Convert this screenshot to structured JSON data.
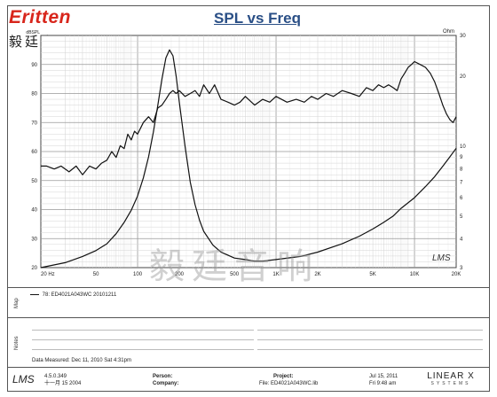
{
  "branding": {
    "brand": "Eritten",
    "brand_cn": "毅廷音响",
    "watermark": "毅廷音响",
    "lms_mark": "LMS"
  },
  "chart_data": {
    "type": "line",
    "title": "SPL vs Freq",
    "xscale": "log",
    "xlim": [
      20,
      20000
    ],
    "x_tick_labels": [
      "20 Hz",
      "50",
      "100",
      "200",
      "500",
      "1K",
      "2K",
      "5K",
      "10K",
      "20K"
    ],
    "x_tick_values": [
      20,
      50,
      100,
      200,
      500,
      1000,
      2000,
      5000,
      10000,
      20000
    ],
    "left_axis": {
      "unit_label": "dBSPL",
      "ylim": [
        20,
        100
      ],
      "tick_values": [
        20,
        30,
        40,
        50,
        60,
        70,
        80,
        90
      ]
    },
    "right_axis": {
      "unit_label": "Ohm",
      "scale": "log",
      "ylim": [
        3,
        30
      ],
      "tick_values": [
        3,
        4,
        5,
        6,
        7,
        8,
        9,
        10,
        20,
        30
      ],
      "tick_labels": [
        "3",
        "4",
        "5",
        "6",
        "7",
        "8",
        "9",
        "10",
        "20",
        "30"
      ]
    },
    "grid": true,
    "series": [
      {
        "axis": "left",
        "color": "#111111",
        "x": [
          20,
          22,
          25,
          28,
          32,
          36,
          40,
          45,
          50,
          55,
          60,
          65,
          70,
          75,
          80,
          85,
          90,
          95,
          100,
          110,
          120,
          130,
          140,
          150,
          160,
          170,
          180,
          190,
          200,
          220,
          240,
          260,
          280,
          300,
          330,
          360,
          400,
          450,
          500,
          550,
          600,
          700,
          800,
          900,
          1000,
          1200,
          1400,
          1600,
          1800,
          2000,
          2300,
          2600,
          3000,
          3500,
          4000,
          4500,
          5000,
          5500,
          6000,
          6500,
          7000,
          7500,
          8000,
          8500,
          9000,
          9500,
          10000,
          11000,
          12000,
          13000,
          14000,
          15000,
          16000,
          17000,
          18000,
          19000,
          20000
        ],
        "y": [
          55,
          55,
          54,
          55,
          53,
          55,
          52,
          55,
          54,
          56,
          57,
          60,
          58,
          62,
          61,
          66,
          64,
          67,
          66,
          70,
          72,
          70,
          75,
          76,
          78,
          80,
          81,
          80,
          81,
          79,
          80,
          81,
          79,
          83,
          80,
          83,
          78,
          77,
          76,
          77,
          79,
          76,
          78,
          77,
          79,
          77,
          78,
          77,
          79,
          78,
          80,
          79,
          81,
          80,
          79,
          82,
          81,
          83,
          82,
          83,
          82,
          81,
          85,
          87,
          89,
          90,
          91,
          90,
          89,
          87,
          84,
          80,
          76,
          73,
          71,
          70,
          72
        ]
      },
      {
        "axis": "right",
        "color": "#111111",
        "x": [
          20,
          30,
          40,
          50,
          60,
          70,
          80,
          90,
          100,
          110,
          120,
          130,
          140,
          150,
          160,
          170,
          180,
          190,
          200,
          220,
          240,
          260,
          280,
          300,
          350,
          400,
          500,
          600,
          700,
          800,
          1000,
          1500,
          2000,
          3000,
          4000,
          5000,
          6000,
          7000,
          8000,
          10000,
          12000,
          14000,
          16000,
          18000,
          20000
        ],
        "y": [
          3.0,
          3.15,
          3.35,
          3.55,
          3.8,
          4.2,
          4.7,
          5.3,
          6.1,
          7.3,
          9.0,
          11.5,
          15.0,
          19.5,
          24.0,
          26.0,
          24.5,
          20.0,
          15.5,
          10.0,
          7.0,
          5.6,
          4.8,
          4.3,
          3.75,
          3.5,
          3.3,
          3.25,
          3.2,
          3.2,
          3.25,
          3.35,
          3.5,
          3.8,
          4.1,
          4.4,
          4.7,
          5.0,
          5.4,
          6.0,
          6.7,
          7.4,
          8.2,
          9.0,
          9.8
        ]
      }
    ]
  },
  "map": {
    "label": "Map",
    "legend_line": "78: ED4021A043WC  20101211"
  },
  "notes": {
    "label": "Notes",
    "date_measured": "Data Measured: Dec 11, 2010  Sat  4:31pm"
  },
  "footer": {
    "logo": "LMS",
    "version": "4.5.0.349",
    "version_date": "十一月 15 2004",
    "person_label": "Person:",
    "company_label": "Company:",
    "project_label": "Project:",
    "file_label": "File: ED4021A043WC.lib",
    "date": "Jul 15, 2011",
    "time": "Fri  9:48 am",
    "brand": "LINEAR X",
    "brand_sub": "SYSTEMS"
  }
}
